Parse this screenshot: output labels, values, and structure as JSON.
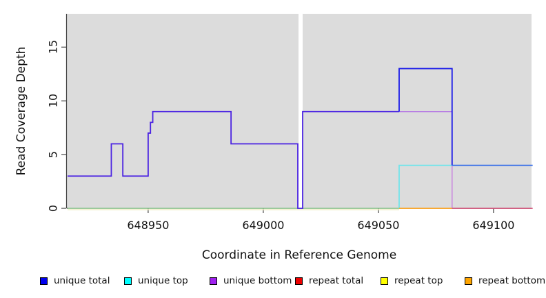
{
  "figure": {
    "y_axis_label": "Read Coverage Depth",
    "x_axis_label": "Coordinate in Reference Genome"
  },
  "legend": {
    "position": "bottom",
    "items": [
      {
        "label": "unique total",
        "color": "#0000EE"
      },
      {
        "label": "unique top",
        "color": "#00FFFF"
      },
      {
        "label": "unique bottom",
        "color": "#A020F0"
      },
      {
        "label": "repeat total",
        "color": "#EE0000"
      },
      {
        "label": "repeat top",
        "color": "#FFFF00"
      },
      {
        "label": "repeat bottom",
        "color": "#FFA500"
      }
    ]
  },
  "chart_data": {
    "type": "line",
    "subtype": "step-coverage-profile",
    "title": "",
    "xlabel": "Coordinate in Reference Genome",
    "ylabel": "Read Coverage Depth",
    "xlim": [
      648914.7,
      649116.5
    ],
    "ylim": [
      0,
      18.1
    ],
    "x_ticks": [
      648950,
      649000,
      649050,
      649100
    ],
    "y_ticks": [
      0,
      5,
      10,
      15
    ],
    "grid": false,
    "plot_bg": "#DCDCDC",
    "no_data_gap_x": [
      649015.3,
      649017.1
    ],
    "series": [
      {
        "name": "unique total",
        "color": "#0000EE",
        "points": [
          [
            648915,
            3
          ],
          [
            648934,
            3
          ],
          [
            648934,
            6
          ],
          [
            648939,
            6
          ],
          [
            648939,
            3
          ],
          [
            648950,
            3
          ],
          [
            648950,
            7
          ],
          [
            648951,
            7
          ],
          [
            648951,
            8
          ],
          [
            648952,
            8
          ],
          [
            648952,
            9
          ],
          [
            648986,
            9
          ],
          [
            648986,
            6
          ],
          [
            649015,
            6
          ],
          [
            649015,
            0
          ],
          [
            649017,
            0
          ],
          [
            649017,
            9
          ],
          [
            649059,
            9
          ],
          [
            649059,
            13
          ],
          [
            649082,
            13
          ],
          [
            649082,
            4
          ],
          [
            649117,
            4
          ]
        ]
      },
      {
        "name": "unique top",
        "color": "#00FFFF",
        "points": [
          [
            648915,
            0
          ],
          [
            649059,
            0
          ],
          [
            649059,
            4
          ],
          [
            649117,
            4
          ]
        ]
      },
      {
        "name": "unique bottom",
        "color": "#A020F0",
        "points": [
          [
            648915,
            3
          ],
          [
            648934,
            3
          ],
          [
            648934,
            6
          ],
          [
            648939,
            6
          ],
          [
            648939,
            3
          ],
          [
            648950,
            3
          ],
          [
            648950,
            7
          ],
          [
            648951,
            7
          ],
          [
            648951,
            8
          ],
          [
            648952,
            8
          ],
          [
            648952,
            9
          ],
          [
            648986,
            9
          ],
          [
            648986,
            6
          ],
          [
            649015,
            6
          ],
          [
            649015,
            0
          ],
          [
            649017,
            0
          ],
          [
            649017,
            9
          ],
          [
            649059,
            9
          ],
          [
            649082,
            9
          ],
          [
            649082,
            0
          ],
          [
            649117,
            0
          ]
        ]
      },
      {
        "name": "repeat total",
        "color": "#EE0000",
        "points": [
          [
            648915,
            0
          ],
          [
            649117,
            0
          ]
        ]
      },
      {
        "name": "repeat top",
        "color": "#FFFF00",
        "points": [
          [
            648915,
            0
          ],
          [
            649117,
            0
          ]
        ]
      },
      {
        "name": "repeat bottom",
        "color": "#FFA500",
        "points": [
          [
            648915,
            0
          ],
          [
            649117,
            0
          ]
        ]
      }
    ],
    "visible_polylines": [
      {
        "name": "baseline-yellow-fringe",
        "color": "#F0EDC8",
        "width": 1.6,
        "dy": 2,
        "points": [
          [
            648915,
            0
          ],
          [
            649059,
            0
          ]
        ]
      },
      {
        "name": "baseline-green-blend",
        "color": "#8BCA8B",
        "width": 1.6,
        "dy": 0,
        "points": [
          [
            648915,
            0
          ],
          [
            649059,
            0
          ]
        ]
      },
      {
        "name": "unique-total-bottom-blend",
        "color": "#4A22E2",
        "width": 1.8,
        "dy": 0,
        "points": [
          [
            648915,
            3
          ],
          [
            648934,
            3
          ],
          [
            648934,
            6
          ],
          [
            648939,
            6
          ],
          [
            648939,
            3
          ],
          [
            648950,
            3
          ],
          [
            648950,
            7
          ],
          [
            648951,
            7
          ],
          [
            648951,
            8
          ],
          [
            648952,
            8
          ],
          [
            648952,
            9
          ],
          [
            648986,
            9
          ],
          [
            648986,
            6
          ],
          [
            649015,
            6
          ],
          [
            649015,
            0
          ],
          [
            649017.1,
            0
          ],
          [
            649017.1,
            9
          ],
          [
            649059,
            9
          ]
        ]
      },
      {
        "name": "unique-bottom-level9",
        "color": "#B579E3",
        "width": 1.5,
        "dy": 0,
        "points": [
          [
            649059,
            9
          ],
          [
            649082,
            9
          ]
        ]
      },
      {
        "name": "unique-bottom-drop",
        "color": "#C883DF",
        "width": 1.5,
        "dy": 0,
        "points": [
          [
            649082,
            9
          ],
          [
            649082,
            0
          ]
        ]
      },
      {
        "name": "unique-top-level4",
        "color": "#70E4EA",
        "width": 1.8,
        "dy": 0,
        "points": [
          [
            649059,
            0
          ],
          [
            649059,
            4
          ],
          [
            649082,
            4
          ]
        ]
      },
      {
        "name": "repeat-bottom-level0",
        "color": "#FFA41F",
        "width": 1.8,
        "dy": 0,
        "points": [
          [
            649059,
            0
          ],
          [
            649082,
            0
          ]
        ]
      },
      {
        "name": "repeat-total-level0",
        "color": "#D2557A",
        "width": 1.8,
        "dy": 0,
        "points": [
          [
            649082,
            0
          ],
          [
            649117,
            0
          ]
        ]
      },
      {
        "name": "unique-total-level13",
        "color": "#1818E8",
        "width": 1.8,
        "dy": 0,
        "points": [
          [
            649059,
            9
          ],
          [
            649059,
            13
          ],
          [
            649082,
            13
          ],
          [
            649082,
            4
          ]
        ]
      },
      {
        "name": "unique-total-level4-over-top",
        "color": "#3A70E8",
        "width": 1.8,
        "dy": 0,
        "points": [
          [
            649082,
            4
          ],
          [
            649117,
            4
          ]
        ]
      }
    ]
  }
}
